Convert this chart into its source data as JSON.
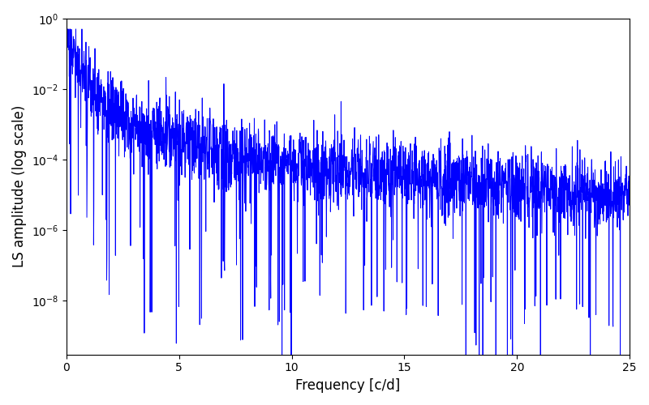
{
  "title": "",
  "xlabel": "Frequency [c/d]",
  "ylabel": "LS amplitude (log scale)",
  "xlim": [
    0,
    25
  ],
  "ylim": [
    3e-10,
    1.0
  ],
  "line_color": "#0000ff",
  "line_width": 0.7,
  "freq_min": 0.01,
  "freq_max": 25.0,
  "n_points": 2500,
  "background_color": "#ffffff",
  "figsize": [
    8.0,
    5.0
  ],
  "dpi": 100,
  "seed": 17
}
